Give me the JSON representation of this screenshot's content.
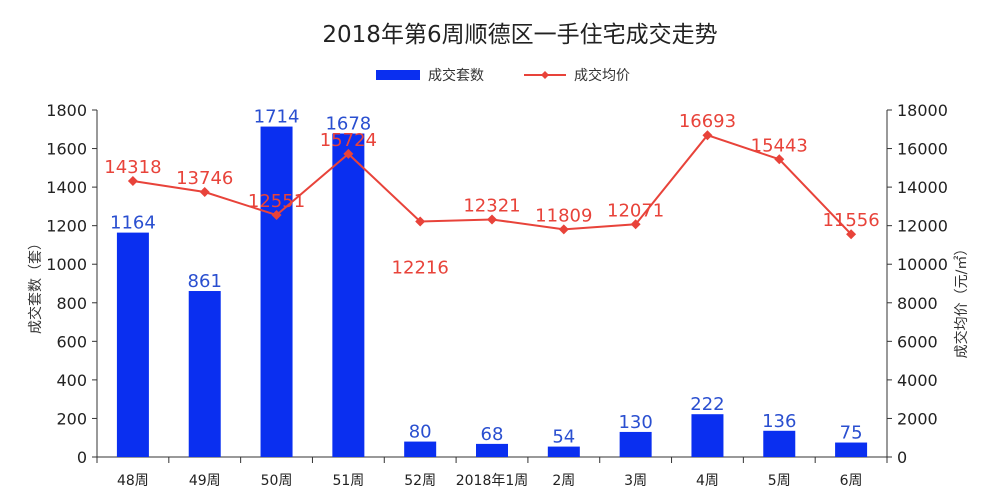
{
  "chart_data": {
    "type": "bar",
    "title": "2018年第6周顺德区一手住宅成交走势",
    "categories": [
      "48周",
      "49周",
      "50周",
      "51周",
      "52周",
      "2018年1周",
      "2周",
      "3周",
      "4周",
      "5周",
      "6周"
    ],
    "series": [
      {
        "name": "成交套数",
        "type": "bar",
        "axis": "left",
        "color": "#0a2ff0",
        "values": [
          1164,
          861,
          1714,
          1678,
          80,
          68,
          54,
          130,
          222,
          136,
          75
        ]
      },
      {
        "name": "成交均价",
        "type": "line",
        "axis": "right",
        "color": "#e8433a",
        "values": [
          14318,
          13746,
          12551,
          15724,
          12216,
          12321,
          11809,
          12071,
          16693,
          15443,
          11556
        ]
      }
    ],
    "ylabel": "成交套数（套）",
    "ylabel_right": "成交均价（元/㎡）",
    "ylim": [
      0,
      1800
    ],
    "ylim_right": [
      0,
      18000
    ],
    "yticks": [
      "0",
      "200",
      "400",
      "600",
      "800",
      "1000",
      "1200",
      "1400",
      "1600",
      "1800"
    ],
    "yticks_right": [
      "0",
      "2000",
      "4000",
      "6000",
      "8000",
      "10000",
      "12000",
      "14000",
      "16000",
      "18000"
    ],
    "legend_position": "top-center",
    "grid": false
  }
}
